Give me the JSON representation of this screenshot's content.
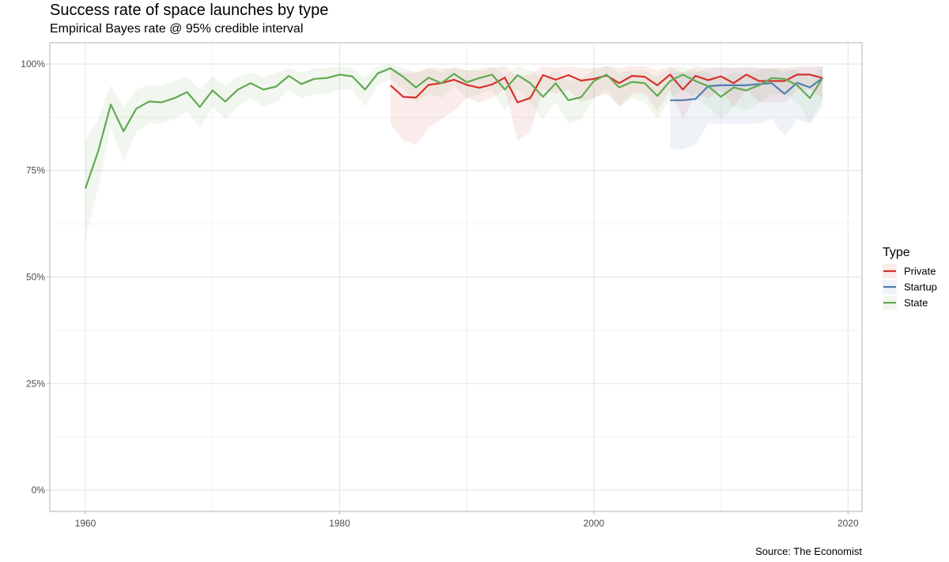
{
  "chart_data": {
    "type": "line",
    "title": "Success rate of space launches by type",
    "subtitle": "Empirical Bayes rate @ 95% credible interval",
    "caption": "Source: The Economist",
    "xlabel": "",
    "ylabel": "",
    "xlim": [
      1957.2,
      2021.1
    ],
    "ylim": [
      -0.05,
      1.05
    ],
    "x_ticks": [
      1960,
      1980,
      2000,
      2020
    ],
    "y_ticks": [
      {
        "value": 0,
        "label": "0%"
      },
      {
        "value": 0.25,
        "label": "25%"
      },
      {
        "value": 0.5,
        "label": "50%"
      },
      {
        "value": 0.75,
        "label": "75%"
      },
      {
        "value": 1,
        "label": "100%"
      }
    ],
    "grid": true,
    "legend": {
      "title": "Type",
      "position": "right"
    },
    "series": [
      {
        "name": "Private",
        "color": "#d7312b",
        "x": [
          1984,
          1985,
          1986,
          1987,
          1988,
          1989,
          1990,
          1991,
          1992,
          1993,
          1994,
          1995,
          1996,
          1997,
          1998,
          1999,
          2000,
          2001,
          2002,
          2003,
          2004,
          2005,
          2006,
          2007,
          2008,
          2009,
          2010,
          2011,
          2012,
          2013,
          2014,
          2015,
          2016,
          2017,
          2018
        ],
        "y": [
          0.95,
          0.923,
          0.921,
          0.951,
          0.955,
          0.963,
          0.951,
          0.944,
          0.952,
          0.968,
          0.91,
          0.92,
          0.974,
          0.963,
          0.974,
          0.961,
          0.965,
          0.973,
          0.955,
          0.972,
          0.97,
          0.95,
          0.975,
          0.94,
          0.972,
          0.962,
          0.971,
          0.955,
          0.975,
          0.96,
          0.96,
          0.96,
          0.975,
          0.975,
          0.967
        ],
        "lower": [
          0.86,
          0.82,
          0.81,
          0.85,
          0.87,
          0.89,
          0.92,
          0.91,
          0.92,
          0.94,
          0.82,
          0.84,
          0.94,
          0.93,
          0.94,
          0.91,
          0.92,
          0.93,
          0.9,
          0.93,
          0.93,
          0.89,
          0.94,
          0.87,
          0.93,
          0.92,
          0.94,
          0.9,
          0.94,
          0.91,
          0.91,
          0.91,
          0.94,
          0.94,
          0.92
        ],
        "upper": [
          0.99,
          0.98,
          0.98,
          0.99,
          0.99,
          0.99,
          0.985,
          0.985,
          0.99,
          0.995,
          0.97,
          0.975,
          0.995,
          0.99,
          0.995,
          0.99,
          0.99,
          0.995,
          0.99,
          0.995,
          0.995,
          0.985,
          0.995,
          0.98,
          0.995,
          0.99,
          0.995,
          0.99,
          0.995,
          0.99,
          0.99,
          0.99,
          0.995,
          0.995,
          0.995
        ]
      },
      {
        "name": "Startup",
        "color": "#4e7eb1",
        "x": [
          2006,
          2007,
          2008,
          2009,
          2010,
          2011,
          2012,
          2013,
          2014,
          2015,
          2016,
          2017,
          2018
        ],
        "y": [
          0.915,
          0.915,
          0.918,
          0.948,
          0.95,
          0.95,
          0.95,
          0.953,
          0.955,
          0.93,
          0.956,
          0.945,
          0.967
        ],
        "lower": [
          0.8,
          0.8,
          0.81,
          0.86,
          0.86,
          0.86,
          0.86,
          0.86,
          0.87,
          0.83,
          0.87,
          0.86,
          0.9
        ],
        "upper": [
          0.98,
          0.98,
          0.98,
          0.99,
          0.99,
          0.99,
          0.99,
          0.99,
          0.99,
          0.98,
          0.99,
          0.99,
          0.995
        ]
      },
      {
        "name": "State",
        "color": "#62a953",
        "x": [
          1960,
          1961,
          1962,
          1963,
          1964,
          1965,
          1966,
          1967,
          1968,
          1969,
          1970,
          1971,
          1972,
          1973,
          1974,
          1975,
          1976,
          1977,
          1978,
          1979,
          1980,
          1981,
          1982,
          1983,
          1984,
          1985,
          1986,
          1987,
          1988,
          1989,
          1990,
          1991,
          1992,
          1993,
          1994,
          1995,
          1996,
          1997,
          1998,
          1999,
          2000,
          2001,
          2002,
          2003,
          2004,
          2005,
          2006,
          2007,
          2008,
          2009,
          2010,
          2011,
          2012,
          2013,
          2014,
          2015,
          2016,
          2017,
          2018
        ],
        "y": [
          0.708,
          0.795,
          0.905,
          0.842,
          0.895,
          0.912,
          0.91,
          0.92,
          0.934,
          0.899,
          0.938,
          0.912,
          0.94,
          0.955,
          0.94,
          0.947,
          0.972,
          0.953,
          0.965,
          0.967,
          0.975,
          0.971,
          0.94,
          0.978,
          0.99,
          0.97,
          0.945,
          0.968,
          0.955,
          0.977,
          0.957,
          0.967,
          0.975,
          0.94,
          0.974,
          0.955,
          0.923,
          0.955,
          0.915,
          0.922,
          0.96,
          0.975,
          0.945,
          0.958,
          0.955,
          0.925,
          0.96,
          0.975,
          0.96,
          0.948,
          0.923,
          0.945,
          0.938,
          0.95,
          0.967,
          0.965,
          0.95,
          0.92,
          0.967
        ],
        "lower": [
          0.59,
          0.71,
          0.85,
          0.77,
          0.84,
          0.86,
          0.86,
          0.87,
          0.89,
          0.85,
          0.9,
          0.87,
          0.9,
          0.92,
          0.9,
          0.91,
          0.94,
          0.92,
          0.93,
          0.93,
          0.94,
          0.94,
          0.9,
          0.95,
          0.965,
          0.94,
          0.91,
          0.93,
          0.92,
          0.95,
          0.92,
          0.93,
          0.94,
          0.89,
          0.94,
          0.91,
          0.87,
          0.91,
          0.86,
          0.87,
          0.92,
          0.94,
          0.9,
          0.92,
          0.91,
          0.87,
          0.92,
          0.94,
          0.92,
          0.9,
          0.87,
          0.9,
          0.89,
          0.91,
          0.93,
          0.93,
          0.91,
          0.86,
          0.92
        ],
        "upper": [
          0.82,
          0.87,
          0.95,
          0.9,
          0.94,
          0.95,
          0.95,
          0.96,
          0.97,
          0.94,
          0.97,
          0.95,
          0.97,
          0.98,
          0.97,
          0.98,
          0.99,
          0.98,
          0.99,
          0.99,
          0.995,
          0.99,
          0.97,
          0.995,
          0.999,
          0.99,
          0.98,
          0.99,
          0.98,
          0.995,
          0.985,
          0.99,
          0.995,
          0.975,
          0.995,
          0.985,
          0.965,
          0.985,
          0.96,
          0.965,
          0.985,
          0.995,
          0.98,
          0.985,
          0.985,
          0.97,
          0.99,
          0.995,
          0.985,
          0.98,
          0.965,
          0.98,
          0.975,
          0.985,
          0.99,
          0.99,
          0.985,
          0.965,
          0.995
        ]
      }
    ]
  }
}
